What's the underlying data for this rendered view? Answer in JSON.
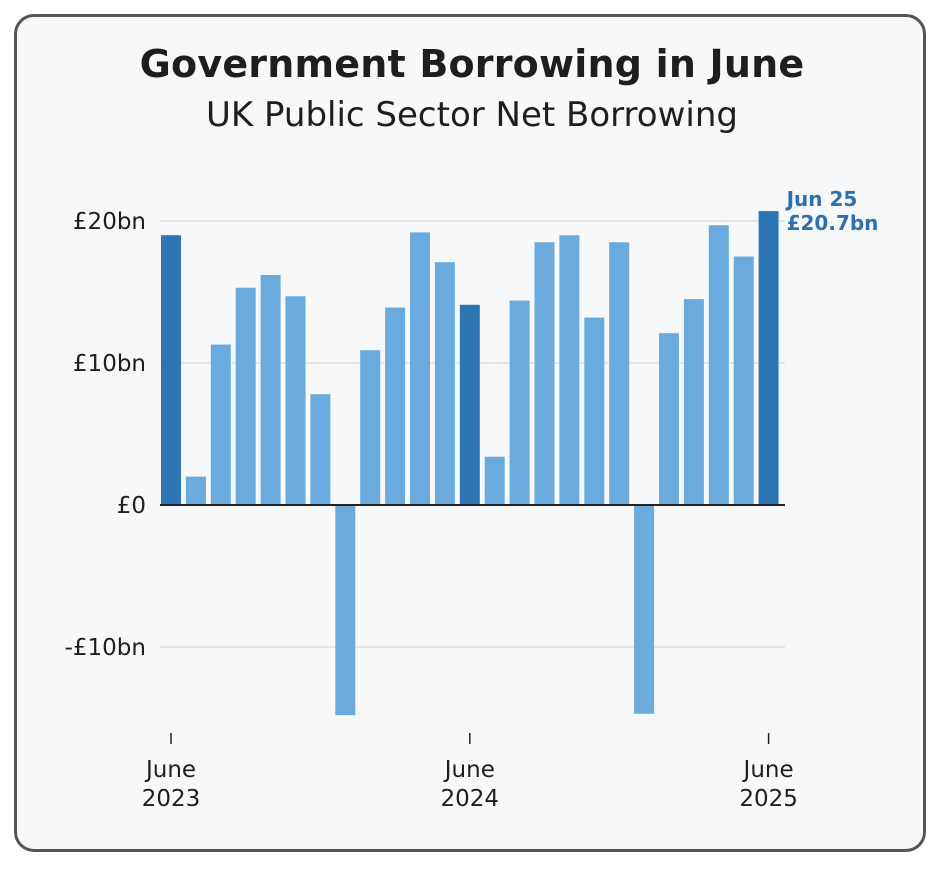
{
  "chart_data": {
    "type": "bar",
    "title": "Government Borrowing in June",
    "subtitle": "UK Public Sector Net Borrowing",
    "xlabel": "",
    "ylabel": "",
    "ylim": [
      -15,
      21
    ],
    "y_ticks": [
      {
        "value": 20,
        "label": "£20bn"
      },
      {
        "value": 10,
        "label": "£10bn"
      },
      {
        "value": 0,
        "label": "£0"
      },
      {
        "value": -10,
        "label": "-£10bn"
      }
    ],
    "x_ticks": [
      {
        "index": 0,
        "line1": "June",
        "line2": "2023"
      },
      {
        "index": 12,
        "line1": "June",
        "line2": "2024"
      },
      {
        "index": 24,
        "line1": "June",
        "line2": "2025"
      }
    ],
    "values": [
      19.0,
      2.0,
      11.3,
      15.3,
      16.2,
      14.7,
      7.8,
      -14.8,
      10.9,
      13.9,
      19.2,
      17.1,
      14.1,
      3.4,
      14.4,
      18.5,
      19.0,
      13.2,
      18.5,
      -14.7,
      12.1,
      14.5,
      19.7,
      17.5,
      20.7
    ],
    "highlight_indices": [
      0,
      12,
      24
    ],
    "annotation": {
      "index": 24,
      "line1": "Jun 25",
      "line2": "£20.7bn"
    },
    "grid": true,
    "legend": "none"
  },
  "colors": {
    "bar": "#6aaadc",
    "highlight_bar": "#2e75b4",
    "annotation": "#2e6fb0",
    "grid": "#dcdcdc",
    "axis": "#222222",
    "text": "#1e1e1e"
  }
}
